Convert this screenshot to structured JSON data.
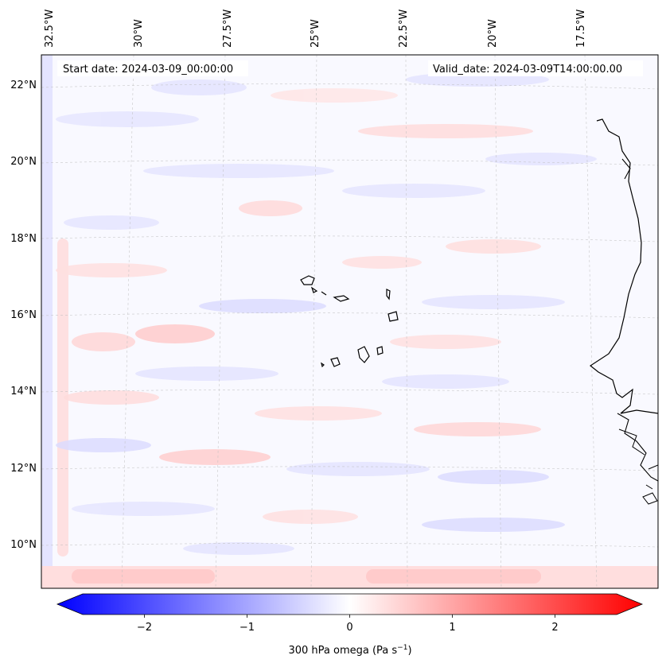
{
  "map": {
    "start_label": "Start date: 2024-03-09_00:00:00",
    "valid_label": "Valid_date: 2024-03-09T14:00:00.00",
    "lon_labels": [
      "32.5°W",
      "30°W",
      "27.5°W",
      "25°W",
      "22.5°W",
      "20°W",
      "17.5°W"
    ],
    "lat_labels": [
      "22°N",
      "20°N",
      "18°N",
      "16°N",
      "14°N",
      "12°N",
      "10°N"
    ],
    "field": "300 hPa omega",
    "projection": "lambert-conformal",
    "gridlines": true
  },
  "colorbar": {
    "label": "300 hPa omega (Pa s",
    "label_sup": "−1",
    "label_close": ")",
    "ticks": [
      "−2",
      "−1",
      "0",
      "1",
      "2"
    ],
    "range": [
      -2.6,
      2.6
    ],
    "tick_values": [
      -2,
      -1,
      0,
      1,
      2
    ],
    "cmap": "bwr",
    "extend": "both",
    "colors": {
      "min": "#0000ff",
      "mid": "#ffffff",
      "max": "#ff0000"
    }
  }
}
